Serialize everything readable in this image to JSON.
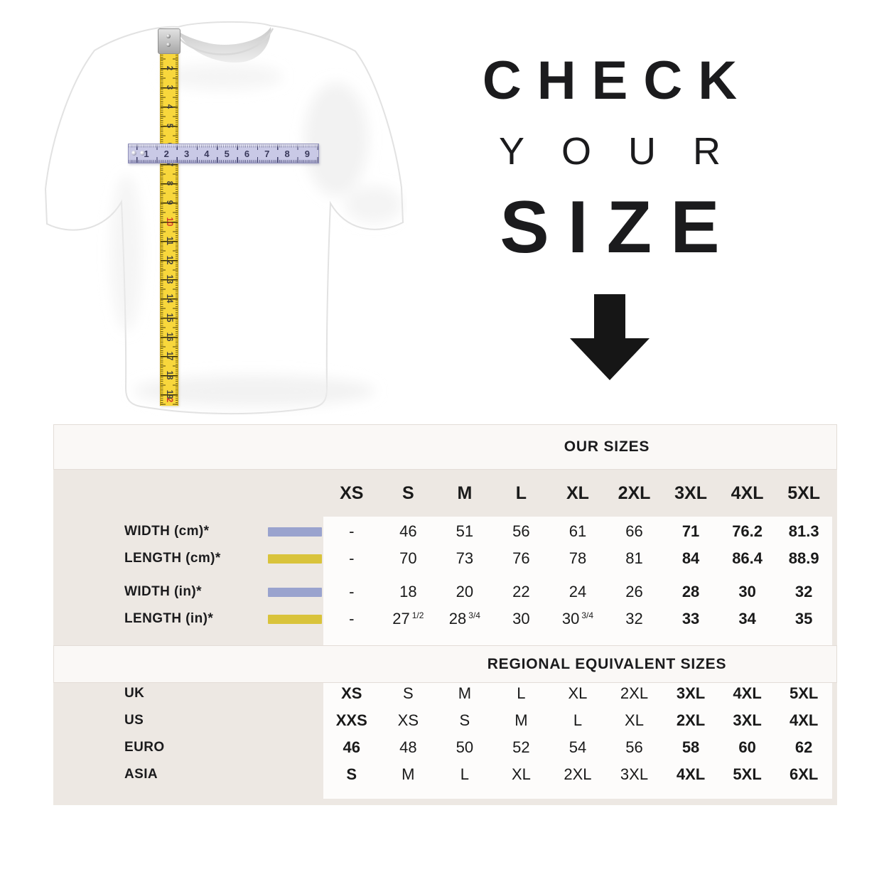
{
  "title": {
    "line1": "CHECK",
    "line2": "YOUR",
    "line3": "SIZE"
  },
  "tshirt": {
    "vertical_tape_numbers": [
      "1",
      "2",
      "3",
      "4",
      "5",
      "6",
      "7",
      "8",
      "9",
      "10",
      "11",
      "12",
      "13",
      "14",
      "15",
      "16",
      "17",
      "18",
      "19",
      "2"
    ],
    "vertical_tape_red_indices": [
      9,
      19
    ],
    "horizontal_ruler_numbers": [
      "1",
      "2",
      "3",
      "4",
      "5",
      "6",
      "7",
      "8",
      "9"
    ],
    "tape_color": "#F8D73C",
    "ruler_color": "#C9C9E6"
  },
  "table": {
    "our_sizes_title": "OUR SIZES",
    "regional_title": "REGIONAL EQUIVALENT SIZES",
    "sizes": [
      "XS",
      "S",
      "M",
      "L",
      "XL",
      "2XL",
      "3XL",
      "4XL",
      "5XL"
    ],
    "measurement_rows": [
      {
        "label": "WIDTH (cm)*",
        "swatch_color": "#9AA3CE",
        "values": [
          {
            "t": "-"
          },
          {
            "t": "46"
          },
          {
            "t": "51"
          },
          {
            "t": "56"
          },
          {
            "t": "61"
          },
          {
            "t": "66"
          },
          {
            "t": "71",
            "b": true
          },
          {
            "t": "76.2",
            "b": true
          },
          {
            "t": "81.3",
            "b": true
          }
        ]
      },
      {
        "label": "LENGTH (cm)*",
        "swatch_color": "#D9C33B",
        "values": [
          {
            "t": "-"
          },
          {
            "t": "70"
          },
          {
            "t": "73"
          },
          {
            "t": "76"
          },
          {
            "t": "78"
          },
          {
            "t": "81"
          },
          {
            "t": "84",
            "b": true
          },
          {
            "t": "86.4",
            "b": true
          },
          {
            "t": "88.9",
            "b": true
          }
        ]
      },
      {
        "label": "WIDTH (in)*",
        "swatch_color": "#9AA3CE",
        "values": [
          {
            "t": "-"
          },
          {
            "t": "18"
          },
          {
            "t": "20"
          },
          {
            "t": "22"
          },
          {
            "t": "24"
          },
          {
            "t": "26"
          },
          {
            "t": "28",
            "b": true
          },
          {
            "t": "30",
            "b": true
          },
          {
            "t": "32",
            "b": true
          }
        ]
      },
      {
        "label": "LENGTH (in)*",
        "swatch_color": "#D9C33B",
        "values": [
          {
            "t": "-"
          },
          {
            "t": "27",
            "sup": "1/2"
          },
          {
            "t": "28",
            "sup": "3/4"
          },
          {
            "t": "30"
          },
          {
            "t": "30",
            "sup": "3/4"
          },
          {
            "t": "32"
          },
          {
            "t": "33",
            "b": true
          },
          {
            "t": "34",
            "b": true
          },
          {
            "t": "35",
            "b": true
          }
        ]
      }
    ],
    "regional_rows": [
      {
        "label": "UK",
        "values": [
          {
            "t": "XS",
            "b": true
          },
          {
            "t": "S"
          },
          {
            "t": "M"
          },
          {
            "t": "L"
          },
          {
            "t": "XL"
          },
          {
            "t": "2XL"
          },
          {
            "t": "3XL",
            "b": true
          },
          {
            "t": "4XL",
            "b": true
          },
          {
            "t": "5XL",
            "b": true
          }
        ]
      },
      {
        "label": "US",
        "values": [
          {
            "t": "XXS",
            "b": true
          },
          {
            "t": "XS"
          },
          {
            "t": "S"
          },
          {
            "t": "M"
          },
          {
            "t": "L"
          },
          {
            "t": "XL"
          },
          {
            "t": "2XL",
            "b": true
          },
          {
            "t": "3XL",
            "b": true
          },
          {
            "t": "4XL",
            "b": true
          }
        ]
      },
      {
        "label": "EURO",
        "values": [
          {
            "t": "46",
            "b": true
          },
          {
            "t": "48"
          },
          {
            "t": "50"
          },
          {
            "t": "52"
          },
          {
            "t": "54"
          },
          {
            "t": "56"
          },
          {
            "t": "58",
            "b": true
          },
          {
            "t": "60",
            "b": true
          },
          {
            "t": "62",
            "b": true
          }
        ]
      },
      {
        "label": "ASIA",
        "values": [
          {
            "t": "S",
            "b": true
          },
          {
            "t": "M"
          },
          {
            "t": "L"
          },
          {
            "t": "XL"
          },
          {
            "t": "2XL"
          },
          {
            "t": "3XL"
          },
          {
            "t": "4XL",
            "b": true
          },
          {
            "t": "5XL",
            "b": true
          },
          {
            "t": "6XL",
            "b": true
          }
        ]
      }
    ],
    "colors": {
      "beige": "#EDE8E3",
      "band": "#FAF8F6",
      "panel": "#FDFCFB",
      "text": "#1A1A1A"
    }
  }
}
